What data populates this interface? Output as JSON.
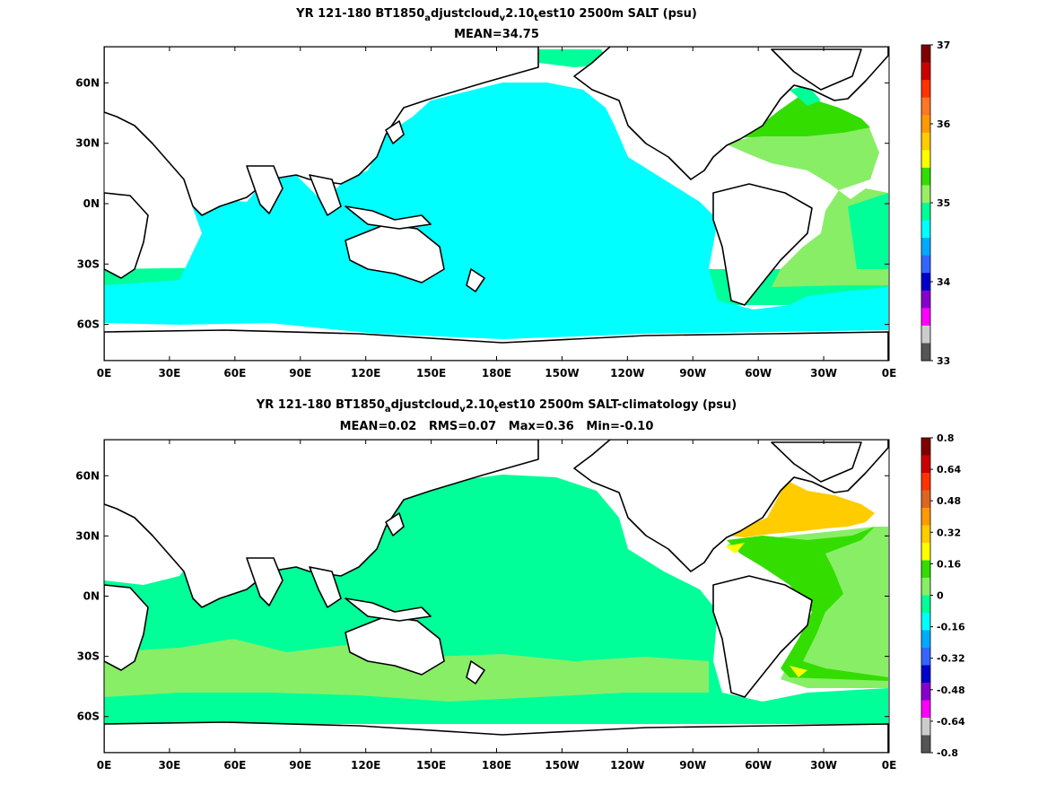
{
  "panel1": {
    "title_parts": [
      "YR 121-180 BT1850",
      "a",
      "djustcloud",
      "v",
      "2.10",
      "t",
      "est10 2500m SALT (psu)"
    ],
    "subtitle": "MEAN=34.75",
    "colorbar": {
      "tick_labels": [
        "37",
        "36",
        "35",
        "34",
        "33"
      ],
      "colors": [
        "#800000",
        "#cc0000",
        "#ff3300",
        "#ff7722",
        "#ff9900",
        "#ffcc00",
        "#ffff00",
        "#33dd00",
        "#99ee66",
        "#00ff99",
        "#00ffff",
        "#00aaff",
        "#3366ff",
        "#0000cc",
        "#8800cc",
        "#ff00ff",
        "#cccccc",
        "#555555"
      ]
    },
    "fills": {
      "land": "#ffffff",
      "ocean_main": "#00ffff",
      "atlantic": "#88ee66",
      "north_atlantic": "#33dd00",
      "southern": "#00ff99"
    }
  },
  "panel2": {
    "title_parts": [
      "YR 121-180 BT1850",
      "a",
      "djustcloud",
      "v",
      "2.10",
      "t",
      "est10 2500m SALT-climatology (psu)"
    ],
    "subtitle": "MEAN=0.02   RMS=0.07   Max=0.36   Min=-0.10",
    "colorbar": {
      "tick_labels": [
        "0.8",
        "0.64",
        "0.48",
        "0.32",
        "0.16",
        "0",
        "-0.16",
        "-0.32",
        "-0.48",
        "-0.64",
        "-0.8"
      ],
      "colors": [
        "#800000",
        "#cc0000",
        "#ff3300",
        "#dd6622",
        "#ff9900",
        "#ffcc00",
        "#ffff00",
        "#33dd00",
        "#88ee66",
        "#00ff99",
        "#00ffff",
        "#00aaff",
        "#3366ff",
        "#0000cc",
        "#8800cc",
        "#ff00ff",
        "#cccccc",
        "#555555"
      ]
    },
    "fills": {
      "land": "#ffffff",
      "ocean_main": "#00ff99",
      "band": "#88ee66",
      "north_atlantic": "#ffcc00",
      "atlantic": "#33dd00",
      "yellow": "#ffff00"
    }
  },
  "axes": {
    "x_ticks": [
      "0E",
      "30E",
      "60E",
      "90E",
      "120E",
      "150E",
      "180E",
      "150W",
      "120W",
      "90W",
      "60W",
      "30W",
      "0E"
    ],
    "y_ticks": [
      "60N",
      "30N",
      "0N",
      "30S",
      "60S"
    ]
  }
}
